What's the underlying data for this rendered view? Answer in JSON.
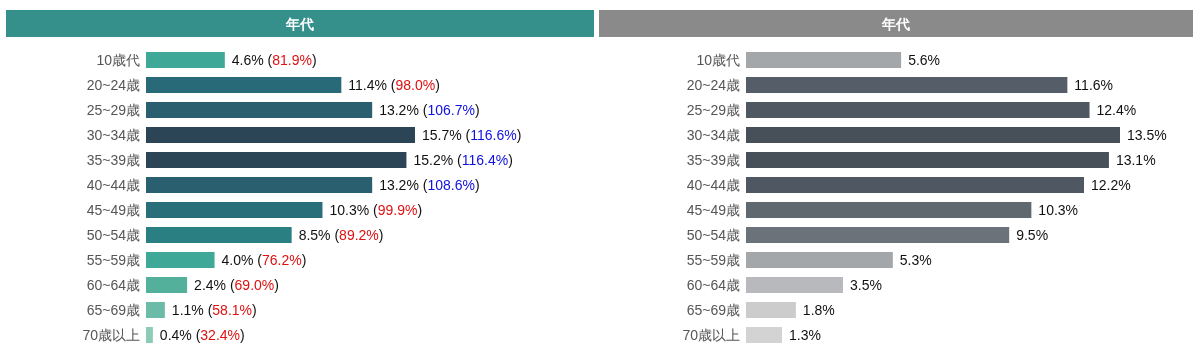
{
  "chart_data": [
    {
      "type": "bar",
      "orientation": "horizontal",
      "title": "年代",
      "categories": [
        "10歳代",
        "20~24歳",
        "25~29歳",
        "30~34歳",
        "35~39歳",
        "40~44歳",
        "45~49歳",
        "50~54歳",
        "55~59歳",
        "60~64歳",
        "65~69歳",
        "70歳以上"
      ],
      "values": [
        4.6,
        11.4,
        13.2,
        15.7,
        15.2,
        13.2,
        10.3,
        8.5,
        4.0,
        2.4,
        1.1,
        0.4
      ],
      "colors": [
        "#3fa896",
        "#286a78",
        "#2a5f70",
        "#2b4556",
        "#2b4556",
        "#2a5f70",
        "#286f7a",
        "#2a7f82",
        "#3fa896",
        "#52b09b",
        "#6cbba8",
        "#8ccbb8"
      ],
      "value_labels": [
        "4.6% (81.9%)",
        "11.4% (98.0%)",
        "13.2% (106.7%)",
        "15.7% (116.6%)",
        "15.2% (116.4%)",
        "13.2% (108.6%)",
        "10.3% (99.9%)",
        "8.5% (89.2%)",
        "4.0% (76.2%)",
        "2.4% (69.0%)",
        "1.1% (58.1%)",
        "0.4% (32.4%)"
      ]
    },
    {
      "type": "bar",
      "orientation": "horizontal",
      "title": "年代",
      "categories": [
        "10歳代",
        "20~24歳",
        "25~29歳",
        "30~34歳",
        "35~39歳",
        "40~44歳",
        "45~49歳",
        "50~54歳",
        "55~59歳",
        "60~64歳",
        "65~69歳",
        "70歳以上"
      ],
      "values": [
        5.6,
        11.6,
        12.4,
        13.5,
        13.1,
        12.2,
        10.3,
        9.5,
        5.3,
        3.5,
        1.8,
        1.3
      ],
      "colors": [
        "#a3a7aa",
        "#555d68",
        "#4f5762",
        "#474f59",
        "#474f59",
        "#4f5762",
        "#5f676f",
        "#6b7279",
        "#a3a7aa",
        "#b8b9bc",
        "#cccccc",
        "#d3d3d3"
      ],
      "value_labels": [
        "5.6%",
        "11.6%",
        "12.4%",
        "13.5%",
        "13.1%",
        "12.2%",
        "10.3%",
        "9.5%",
        "5.3%",
        "3.5%",
        "1.8%",
        "1.3%"
      ]
    }
  ]
}
